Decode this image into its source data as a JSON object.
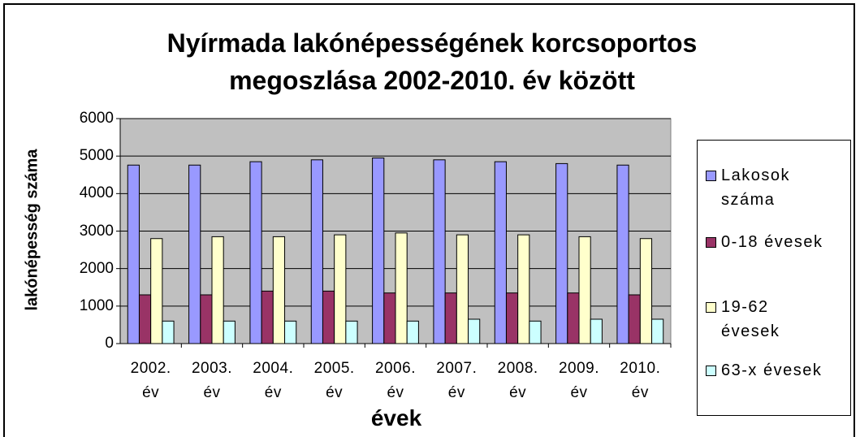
{
  "chart_data": {
    "type": "bar",
    "title": "Nyírmada lakónépességének korcsoportos megoszlása 2002-2010. év között",
    "x_label": "évek",
    "y_label": "lakónépesség száma",
    "categories": [
      "2002. év",
      "2003. év",
      "2004. év",
      "2005. év",
      "2006. év",
      "2007. év",
      "2008. év",
      "2009. év",
      "2010. év"
    ],
    "series": [
      {
        "name": "Lakosok száma",
        "color": "#9999ff",
        "values": [
          4760,
          4760,
          4850,
          4900,
          4950,
          4900,
          4850,
          4800,
          4760
        ]
      },
      {
        "name": "0-18 évesek",
        "color": "#993366",
        "values": [
          1300,
          1300,
          1400,
          1400,
          1350,
          1350,
          1350,
          1350,
          1300
        ]
      },
      {
        "name": "19-62 évesek",
        "color": "#ffffcc",
        "values": [
          2800,
          2850,
          2850,
          2900,
          2950,
          2900,
          2900,
          2850,
          2800
        ]
      },
      {
        "name": "63-x évesek",
        "color": "#ccffff",
        "values": [
          600,
          600,
          600,
          600,
          600,
          650,
          600,
          650,
          650
        ]
      }
    ],
    "ylim": [
      0,
      6000
    ],
    "yticks": [
      0,
      1000,
      2000,
      3000,
      4000,
      5000,
      6000
    ],
    "grid": true,
    "legend": "right"
  }
}
